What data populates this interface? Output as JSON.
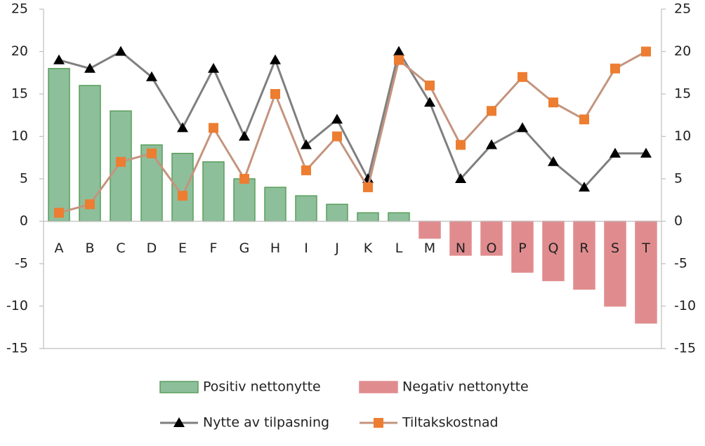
{
  "chart_data": {
    "type": "combo",
    "categories": [
      "A",
      "B",
      "C",
      "D",
      "E",
      "F",
      "G",
      "H",
      "I",
      "J",
      "K",
      "L",
      "M",
      "N",
      "O",
      "P",
      "Q",
      "R",
      "S",
      "T"
    ],
    "series": [
      {
        "name": "Positiv nettonytte",
        "type": "bar",
        "color": "#8dbf9b",
        "stroke": "#5a9e5a",
        "values": [
          18,
          16,
          13,
          9,
          8,
          7,
          5,
          4,
          3,
          2,
          1,
          1,
          null,
          null,
          null,
          null,
          null,
          null,
          null,
          null
        ]
      },
      {
        "name": "Negativ nettonytte",
        "type": "bar",
        "color": "#e08c8e",
        "stroke": "#e08c8e",
        "values": [
          null,
          null,
          null,
          null,
          null,
          null,
          null,
          null,
          null,
          null,
          null,
          null,
          -2,
          -4,
          -4,
          -6,
          -7,
          -8,
          -10,
          -12
        ]
      },
      {
        "name": "Nytte av tilpasning",
        "type": "line",
        "color": "#7f7f7f",
        "marker": "triangle",
        "marker_color": "#000000",
        "values": [
          19,
          18,
          20,
          17,
          11,
          18,
          10,
          19,
          9,
          12,
          5,
          20,
          14,
          5,
          9,
          11,
          7,
          4,
          8,
          8
        ]
      },
      {
        "name": "Tiltakskostnad",
        "type": "line",
        "color": "#c4947e",
        "marker": "square",
        "marker_color": "#ed7d31",
        "values": [
          1,
          2,
          7,
          8,
          3,
          11,
          5,
          15,
          6,
          10,
          4,
          19,
          16,
          9,
          13,
          17,
          14,
          12,
          18,
          20
        ]
      }
    ],
    "ylim": [
      -15,
      25
    ],
    "yticks": [
      -15,
      -10,
      -5,
      0,
      5,
      10,
      15,
      20,
      25
    ],
    "y2lim": [
      -15,
      25
    ],
    "y2ticks": [
      -15,
      -10,
      -5,
      0,
      5,
      10,
      15,
      20,
      25
    ]
  }
}
